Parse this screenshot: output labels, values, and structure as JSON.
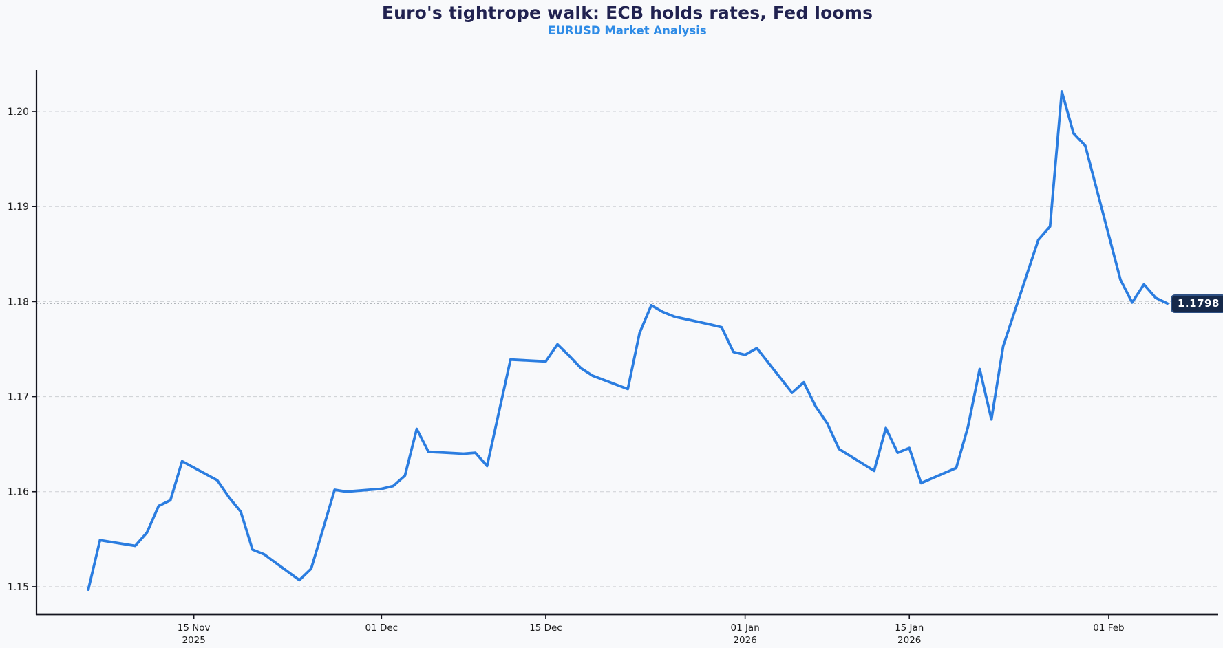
{
  "header": {
    "title": "Euro's tightrope walk: ECB holds rates, Fed looms",
    "subtitle": "EURUSD Market Analysis"
  },
  "colors": {
    "background": "#f8f9fb",
    "title": "#212250",
    "subtitle": "#2e8be6",
    "line": "#2b7de0",
    "grid": "#cdd0d4",
    "annotation_line": "#9aa0a6",
    "axis": "#15151f",
    "tick_text": "#1a1a1a",
    "label_bg": "#16294a",
    "label_border": "#2f5184",
    "label_text": "#ffffff"
  },
  "chart_data": {
    "type": "line",
    "title": "Euro's tightrope walk: ECB holds rates, Fed looms",
    "subtitle": "EURUSD Market Analysis",
    "series_name": "EURUSD",
    "grid": "horizontal dashed",
    "legend": "none",
    "ylim": [
      1.1471,
      1.2042
    ],
    "xdomain": [
      "2025-11-01T14:00:00Z",
      "2026-02-10T08:00:00Z"
    ],
    "yticks": [
      {
        "value": 1.15,
        "label": "1.15"
      },
      {
        "value": 1.16,
        "label": "1.16"
      },
      {
        "value": 1.17,
        "label": "1.17"
      },
      {
        "value": 1.18,
        "label": "1.18"
      },
      {
        "value": 1.19,
        "label": "1.19"
      },
      {
        "value": 1.2,
        "label": "1.20"
      }
    ],
    "xticks": [
      {
        "date": "2025-11-15",
        "label": "15 Nov",
        "year": "2025"
      },
      {
        "date": "2025-12-01",
        "label": "01 Dec",
        "year": ""
      },
      {
        "date": "2025-12-15",
        "label": "15 Dec",
        "year": ""
      },
      {
        "date": "2026-01-01",
        "label": "01 Jan",
        "year": "2026"
      },
      {
        "date": "2026-01-15",
        "label": "15 Jan",
        "year": "2026"
      },
      {
        "date": "2026-02-01",
        "label": "01 Feb",
        "year": ""
      }
    ],
    "points": [
      [
        "2025-11-06",
        1.1497
      ],
      [
        "2025-11-07",
        1.1549
      ],
      [
        "2025-11-10",
        1.1543
      ],
      [
        "2025-11-11",
        1.1557
      ],
      [
        "2025-11-12",
        1.1585
      ],
      [
        "2025-11-13",
        1.1591
      ],
      [
        "2025-11-14",
        1.1632
      ],
      [
        "2025-11-17",
        1.1612
      ],
      [
        "2025-11-18",
        1.1594
      ],
      [
        "2025-11-19",
        1.1579
      ],
      [
        "2025-11-20",
        1.1539
      ],
      [
        "2025-11-21",
        1.1534
      ],
      [
        "2025-11-24",
        1.1507
      ],
      [
        "2025-11-25",
        1.1519
      ],
      [
        "2025-11-26",
        1.156
      ],
      [
        "2025-11-27",
        1.1602
      ],
      [
        "2025-11-28",
        1.16
      ],
      [
        "2025-12-01",
        1.1603
      ],
      [
        "2025-12-02",
        1.1606
      ],
      [
        "2025-12-03",
        1.1617
      ],
      [
        "2025-12-04",
        1.1666
      ],
      [
        "2025-12-05",
        1.1642
      ],
      [
        "2025-12-08",
        1.164
      ],
      [
        "2025-12-09",
        1.1641
      ],
      [
        "2025-12-10",
        1.1627
      ],
      [
        "2025-12-11",
        1.1683
      ],
      [
        "2025-12-12",
        1.1739
      ],
      [
        "2025-12-15",
        1.1737
      ],
      [
        "2025-12-16",
        1.1755
      ],
      [
        "2025-12-17",
        1.1743
      ],
      [
        "2025-12-18",
        1.173
      ],
      [
        "2025-12-19",
        1.1722
      ],
      [
        "2025-12-22",
        1.1708
      ],
      [
        "2025-12-23",
        1.1767
      ],
      [
        "2025-12-24",
        1.1796
      ],
      [
        "2025-12-25",
        1.1789
      ],
      [
        "2025-12-26",
        1.1784
      ],
      [
        "2025-12-29",
        1.1776
      ],
      [
        "2025-12-30",
        1.1773
      ],
      [
        "2025-12-31",
        1.1747
      ],
      [
        "2026-01-01",
        1.1744
      ],
      [
        "2026-01-02",
        1.1751
      ],
      [
        "2026-01-05",
        1.1704
      ],
      [
        "2026-01-06",
        1.1715
      ],
      [
        "2026-01-07",
        1.169
      ],
      [
        "2026-01-08",
        1.1672
      ],
      [
        "2026-01-09",
        1.1645
      ],
      [
        "2026-01-12",
        1.1622
      ],
      [
        "2026-01-13",
        1.1667
      ],
      [
        "2026-01-14",
        1.1641
      ],
      [
        "2026-01-15",
        1.1646
      ],
      [
        "2026-01-16",
        1.1609
      ],
      [
        "2026-01-19",
        1.1625
      ],
      [
        "2026-01-20",
        1.1668
      ],
      [
        "2026-01-21",
        1.1729
      ],
      [
        "2026-01-22",
        1.1676
      ],
      [
        "2026-01-23",
        1.1753
      ],
      [
        "2026-01-26",
        1.1865
      ],
      [
        "2026-01-27",
        1.1879
      ],
      [
        "2026-01-28",
        1.2021
      ],
      [
        "2026-01-29",
        1.1977
      ],
      [
        "2026-01-30",
        1.1964
      ],
      [
        "2026-02-02",
        1.1823
      ],
      [
        "2026-02-03",
        1.1799
      ],
      [
        "2026-02-04",
        1.1818
      ],
      [
        "2026-02-05",
        1.1804
      ],
      [
        "2026-02-06",
        1.1798
      ]
    ],
    "annotation": {
      "label": "1.1798",
      "value": 1.1798,
      "line_style": "dotted"
    }
  }
}
